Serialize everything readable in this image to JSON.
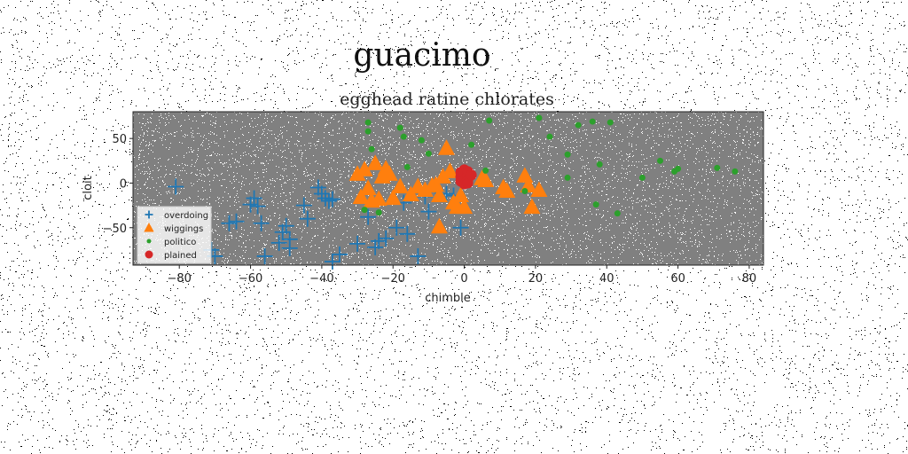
{
  "chart_data": {
    "type": "scatter",
    "suptitle": "guacimo",
    "title": "egghead ratine chlorates",
    "xlabel": "chimble",
    "ylabel": "cloit",
    "xlim": [
      -93,
      84
    ],
    "ylim": [
      -92,
      80
    ],
    "xticks": [
      -80,
      -60,
      -40,
      -20,
      0,
      20,
      40,
      60,
      80
    ],
    "yticks": [
      -50,
      0,
      50
    ],
    "grid": false,
    "legend_position": "lower-left",
    "plot_background": "#808080",
    "series": [
      {
        "name": "overdoing",
        "marker": "plus",
        "color": "#1f77b4",
        "points": [
          [
            -81,
            -4
          ],
          [
            -71,
            -75
          ],
          [
            -70,
            -82
          ],
          [
            -66,
            -45
          ],
          [
            -64,
            -43
          ],
          [
            -60,
            -24
          ],
          [
            -59,
            -17
          ],
          [
            -58,
            -26
          ],
          [
            -57,
            -45
          ],
          [
            -56,
            -82
          ],
          [
            -52,
            -67
          ],
          [
            -51,
            -55
          ],
          [
            -50,
            -48
          ],
          [
            -49,
            -73
          ],
          [
            -49,
            -63
          ],
          [
            -45,
            -25
          ],
          [
            -44,
            -40
          ],
          [
            -41,
            -5
          ],
          [
            -40,
            -12
          ],
          [
            -39,
            -17
          ],
          [
            -38,
            -20
          ],
          [
            -37,
            -18
          ],
          [
            -37,
            -88
          ],
          [
            -35,
            -80
          ],
          [
            -30,
            -68
          ],
          [
            -27,
            -38
          ],
          [
            -25,
            -72
          ],
          [
            -24,
            -65
          ],
          [
            -22,
            -62
          ],
          [
            -19,
            -50
          ],
          [
            -17,
            -22
          ],
          [
            -16,
            -57
          ],
          [
            -13,
            -82
          ],
          [
            -11,
            -15
          ],
          [
            -10,
            -32
          ],
          [
            -8,
            -8
          ],
          [
            -5,
            -12
          ],
          [
            -3,
            -14
          ],
          [
            -1,
            -50
          ]
        ]
      },
      {
        "name": "wiggings",
        "marker": "triangle",
        "color": "#ff7f0e",
        "points": [
          [
            -30,
            10
          ],
          [
            -29,
            -16
          ],
          [
            -28,
            15
          ],
          [
            -27,
            -6
          ],
          [
            -26,
            -20
          ],
          [
            -25,
            22
          ],
          [
            -24,
            -18
          ],
          [
            -23,
            7
          ],
          [
            -22,
            16
          ],
          [
            -21,
            10
          ],
          [
            -20,
            -17
          ],
          [
            -18,
            -4
          ],
          [
            -15,
            -13
          ],
          [
            -13,
            -4
          ],
          [
            -11,
            -8
          ],
          [
            -9,
            -3
          ],
          [
            -8,
            -2
          ],
          [
            -7,
            -14
          ],
          [
            -7,
            -49
          ],
          [
            -6,
            7
          ],
          [
            -5,
            39
          ],
          [
            -4,
            13
          ],
          [
            -3,
            -22
          ],
          [
            -2,
            -27
          ],
          [
            -1,
            -14
          ],
          [
            0,
            -27
          ],
          [
            5,
            5
          ],
          [
            6,
            3
          ],
          [
            11,
            -5
          ],
          [
            12,
            -9
          ],
          [
            17,
            8
          ],
          [
            18,
            -3
          ],
          [
            19,
            -27
          ],
          [
            21,
            -8
          ]
        ]
      },
      {
        "name": "politico",
        "marker": "dot",
        "color": "#2ca02c",
        "points": [
          [
            -28,
            -30
          ],
          [
            -27,
            68
          ],
          [
            -27,
            58
          ],
          [
            -26,
            38
          ],
          [
            -24,
            -33
          ],
          [
            -18,
            62
          ],
          [
            -17,
            52
          ],
          [
            -16,
            18
          ],
          [
            -12,
            48
          ],
          [
            -10,
            33
          ],
          [
            2,
            43
          ],
          [
            6,
            14
          ],
          [
            7,
            70
          ],
          [
            17,
            -9
          ],
          [
            21,
            73
          ],
          [
            24,
            52
          ],
          [
            29,
            32
          ],
          [
            29,
            6
          ],
          [
            32,
            65
          ],
          [
            36,
            69
          ],
          [
            37,
            -24
          ],
          [
            38,
            21
          ],
          [
            41,
            68
          ],
          [
            43,
            -34
          ],
          [
            50,
            6
          ],
          [
            55,
            25
          ],
          [
            59,
            13
          ],
          [
            60,
            16
          ],
          [
            71,
            17
          ],
          [
            76,
            13
          ]
        ]
      },
      {
        "name": "plained",
        "marker": "circle",
        "color": "#d62728",
        "points": [
          [
            -1,
            12
          ],
          [
            -1,
            7
          ],
          [
            -1,
            2
          ],
          [
            0,
            15
          ],
          [
            0,
            10
          ],
          [
            0,
            4
          ],
          [
            0,
            -1
          ],
          [
            1,
            13
          ],
          [
            1,
            8
          ],
          [
            1,
            3
          ],
          [
            1,
            0
          ],
          [
            2,
            9
          ]
        ]
      }
    ]
  }
}
